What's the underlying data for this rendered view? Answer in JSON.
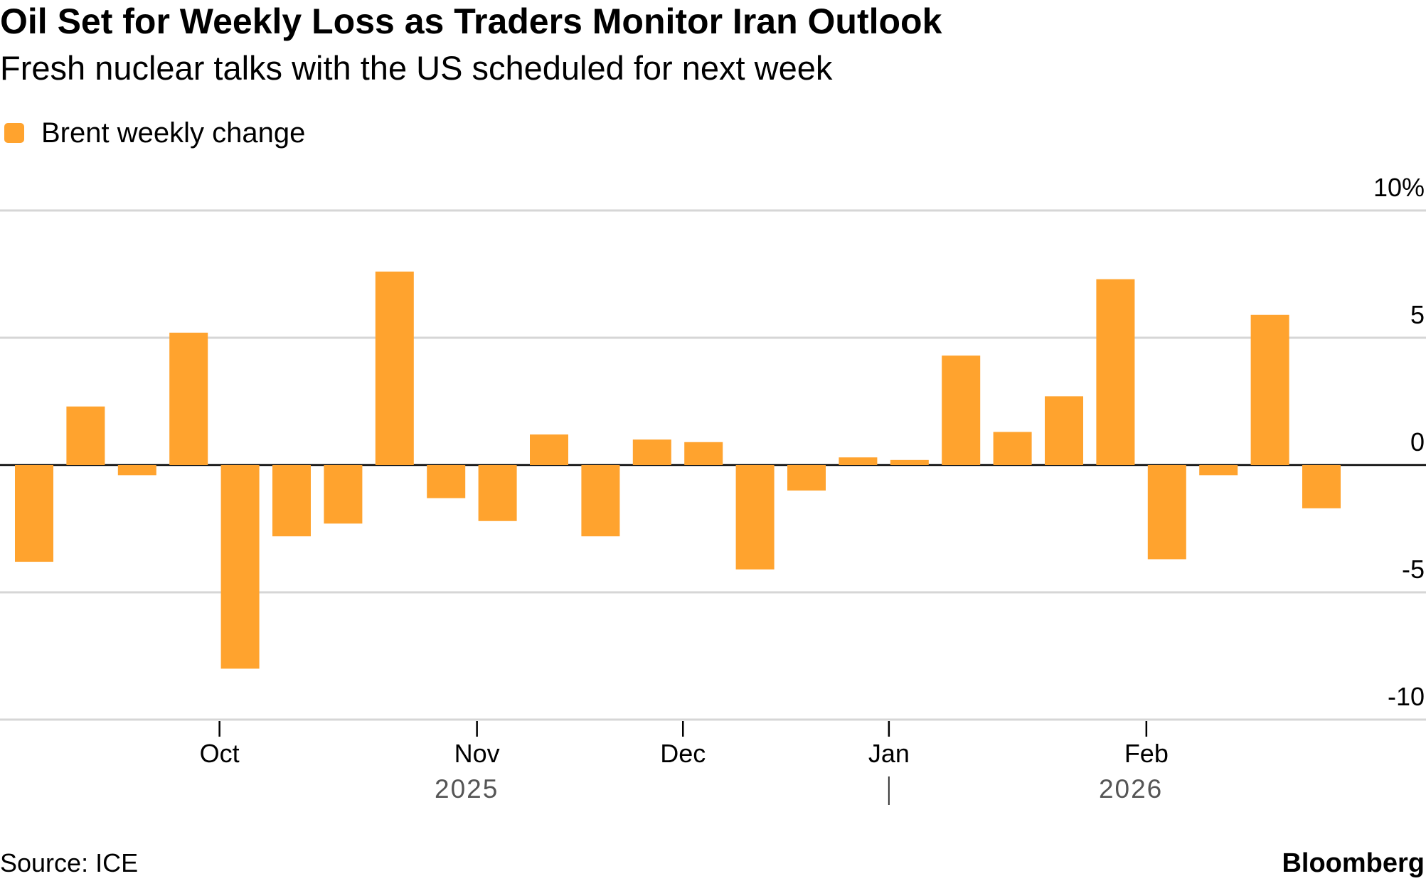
{
  "title": "Oil Set for Weekly Loss as Traders Monitor Iran Outlook",
  "subtitle": "Fresh nuclear talks with the US scheduled for next week",
  "source": "Source: ICE",
  "brand": "Bloomberg",
  "colors": {
    "bar": "#FFA32E",
    "grid": "#d6d6d6",
    "axis": "#000000"
  },
  "chart_data": {
    "type": "bar",
    "title": "Oil Set for Weekly Loss as Traders Monitor Iran Outlook",
    "legend": [
      "Brent weekly change"
    ],
    "ylabel": "",
    "xlabel": "",
    "ylim": [
      -10,
      10
    ],
    "y_ticks": [
      10,
      5,
      0,
      -5,
      -10
    ],
    "y_tick_labels": [
      "10%",
      "5",
      "0",
      "-5",
      "-10"
    ],
    "x_ticks": [
      {
        "label": "Oct",
        "week": 3.6
      },
      {
        "label": "Nov",
        "week": 8.6
      },
      {
        "label": "Dec",
        "week": 12.6
      },
      {
        "label": "Jan",
        "week": 16.6
      },
      {
        "label": "Feb",
        "week": 21.6
      }
    ],
    "year_labels": [
      {
        "label": "2025",
        "week": 8.4
      },
      {
        "label": "2026",
        "week": 21.3
      }
    ],
    "year_divider_week": 16.6,
    "series": [
      {
        "name": "Brent weekly change",
        "values": [
          -3.8,
          2.3,
          -0.4,
          5.2,
          -8.0,
          -2.8,
          -2.3,
          7.6,
          -1.3,
          -2.2,
          1.2,
          -2.8,
          1.0,
          0.9,
          -4.1,
          -1.0,
          0.3,
          0.2,
          4.3,
          1.3,
          2.7,
          7.3,
          -3.7,
          -0.4,
          5.9,
          -1.7
        ]
      }
    ]
  }
}
